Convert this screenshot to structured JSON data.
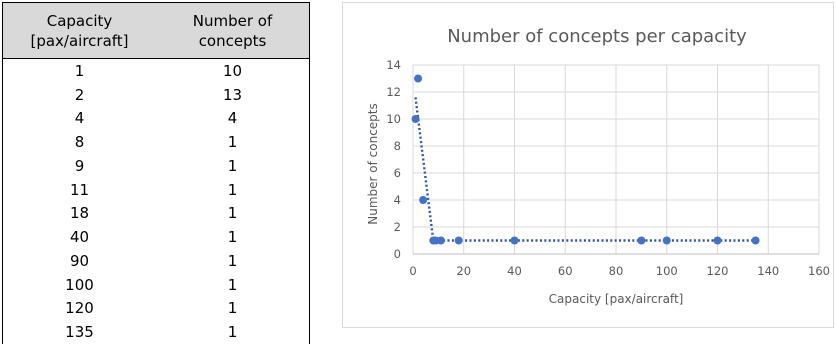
{
  "table": {
    "headers": [
      "Capacity\n[pax/aircraft]",
      "Number of\nconcepts"
    ],
    "rows": [
      [
        "1",
        "10"
      ],
      [
        "2",
        "13"
      ],
      [
        "4",
        "4"
      ],
      [
        "8",
        "1"
      ],
      [
        "9",
        "1"
      ],
      [
        "11",
        "1"
      ],
      [
        "18",
        "1"
      ],
      [
        "40",
        "1"
      ],
      [
        "90",
        "1"
      ],
      [
        "100",
        "1"
      ],
      [
        "120",
        "1"
      ],
      [
        "135",
        "1"
      ]
    ]
  },
  "chart_data": {
    "type": "scatter",
    "title": "Number of concepts per capacity",
    "xlabel": "Capacity [pax/aircraft]",
    "ylabel": "Number of concepts",
    "xlim": [
      0,
      160
    ],
    "ylim": [
      0,
      14
    ],
    "xticks": [
      0,
      20,
      40,
      60,
      80,
      100,
      120,
      140,
      160
    ],
    "yticks": [
      0,
      2,
      4,
      6,
      8,
      10,
      12,
      14
    ],
    "grid": true,
    "legend": "none",
    "point_color": "#4472c4",
    "trendline_color": "#2f55a4",
    "points": [
      {
        "x": 1,
        "y": 10
      },
      {
        "x": 2,
        "y": 13
      },
      {
        "x": 4,
        "y": 4
      },
      {
        "x": 8,
        "y": 1
      },
      {
        "x": 9,
        "y": 1
      },
      {
        "x": 11,
        "y": 1
      },
      {
        "x": 18,
        "y": 1
      },
      {
        "x": 40,
        "y": 1
      },
      {
        "x": 90,
        "y": 1
      },
      {
        "x": 100,
        "y": 1
      },
      {
        "x": 120,
        "y": 1
      },
      {
        "x": 135,
        "y": 1
      }
    ],
    "trendline": "dotted"
  }
}
